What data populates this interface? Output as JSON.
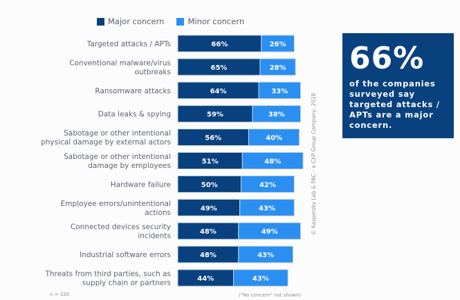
{
  "legend": {
    "major_label": "Major concern",
    "minor_label": "Minor concern"
  },
  "callout": {
    "big_number": "66%",
    "text": "of the companies surveyed say targeted attacks / APTs are a major concern."
  },
  "copyright": "© Kaspersky Lab & PAC - a CXP Group Company, 2018",
  "footnotes": {
    "sample": "n = 320",
    "note": "(\"No concern\" not shown)"
  },
  "colors": {
    "major": "#08417e",
    "minor": "#2a8ff0"
  },
  "chart_data": {
    "type": "bar",
    "orientation": "horizontal",
    "stacked": true,
    "title": "",
    "xlabel": "",
    "ylabel": "",
    "xlim": [
      0,
      100
    ],
    "grid": false,
    "legend_position": "top",
    "categories": [
      [
        "Targeted attacks / APTs"
      ],
      [
        "Conventional malware/virus",
        "outbreaks"
      ],
      [
        "Ransomware attacks"
      ],
      [
        "Data leaks & spying"
      ],
      [
        "Sabotage or other intentional",
        "physical damage by external actors"
      ],
      [
        "Sabotage or other intentional",
        "damage by employees"
      ],
      [
        "Hardware failure"
      ],
      [
        "Employee errors/unintentional",
        "actions"
      ],
      [
        "Connected devices security",
        "incidents"
      ],
      [
        "Industrial software errors"
      ],
      [
        "Threats from third parties, such as",
        "supply chain or partners"
      ]
    ],
    "series": [
      {
        "name": "Major concern",
        "values": [
          66,
          65,
          64,
          59,
          56,
          51,
          50,
          49,
          48,
          48,
          44
        ]
      },
      {
        "name": "Minor concern",
        "values": [
          26,
          28,
          33,
          38,
          40,
          48,
          42,
          43,
          49,
          43,
          43
        ]
      }
    ],
    "value_suffix": "%"
  }
}
